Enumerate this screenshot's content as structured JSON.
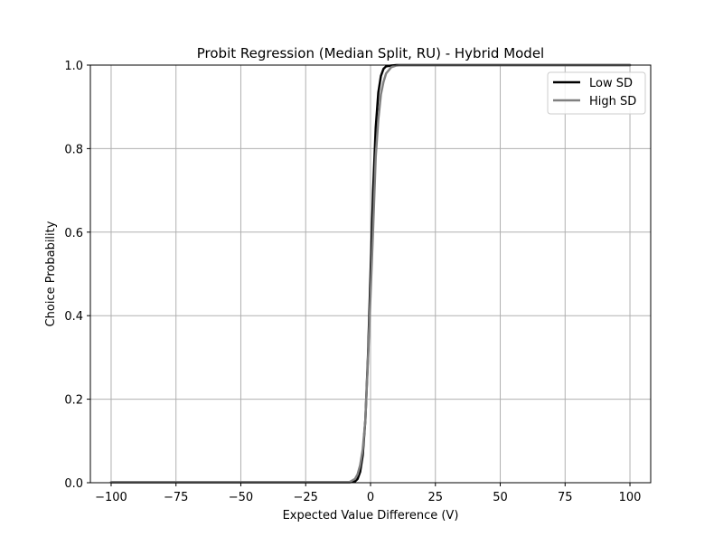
{
  "chart_data": {
    "type": "line",
    "title": "Probit Regression (Median Split, RU) - Hybrid Model",
    "xlabel": "Expected Value Difference (V)",
    "ylabel": "Choice Probability",
    "xlim": [
      -108,
      108
    ],
    "ylim": [
      0,
      1
    ],
    "grid": true,
    "legend_position": "top-right",
    "x_ticks": [
      -100,
      -75,
      -50,
      -25,
      0,
      25,
      50,
      75,
      100
    ],
    "x_tick_labels": [
      "−100",
      "−75",
      "−50",
      "−25",
      "0",
      "25",
      "50",
      "75",
      "100"
    ],
    "y_ticks": [
      0,
      0.2,
      0.4,
      0.6,
      0.8,
      1.0
    ],
    "y_tick_labels": [
      "0.0",
      "0.2",
      "0.4",
      "0.6",
      "0.8",
      "1.0"
    ],
    "series": [
      {
        "name": "Low SD",
        "color": "#000000",
        "x": [
          -100,
          -10,
          -8,
          -6,
          -5,
          -4,
          -3,
          -2,
          -1,
          0,
          1,
          2,
          3,
          4,
          5,
          6,
          8,
          10,
          100
        ],
        "y": [
          0.001,
          0.001,
          0.001,
          0.003,
          0.009,
          0.026,
          0.066,
          0.15,
          0.3,
          0.5,
          0.7,
          0.85,
          0.934,
          0.974,
          0.991,
          0.997,
          0.999,
          1.0,
          1.0
        ]
      },
      {
        "name": "High SD",
        "color": "#808080",
        "x": [
          -100,
          -12,
          -10,
          -8,
          -6,
          -5,
          -4,
          -3,
          -2,
          -1,
          0,
          1,
          2,
          3,
          4,
          5,
          6,
          8,
          10,
          12,
          100
        ],
        "y": [
          0.001,
          0.001,
          0.001,
          0.002,
          0.009,
          0.02,
          0.042,
          0.08,
          0.15,
          0.29,
          0.45,
          0.61,
          0.78,
          0.87,
          0.93,
          0.96,
          0.98,
          0.995,
          0.999,
          1.0,
          1.0
        ]
      }
    ]
  }
}
